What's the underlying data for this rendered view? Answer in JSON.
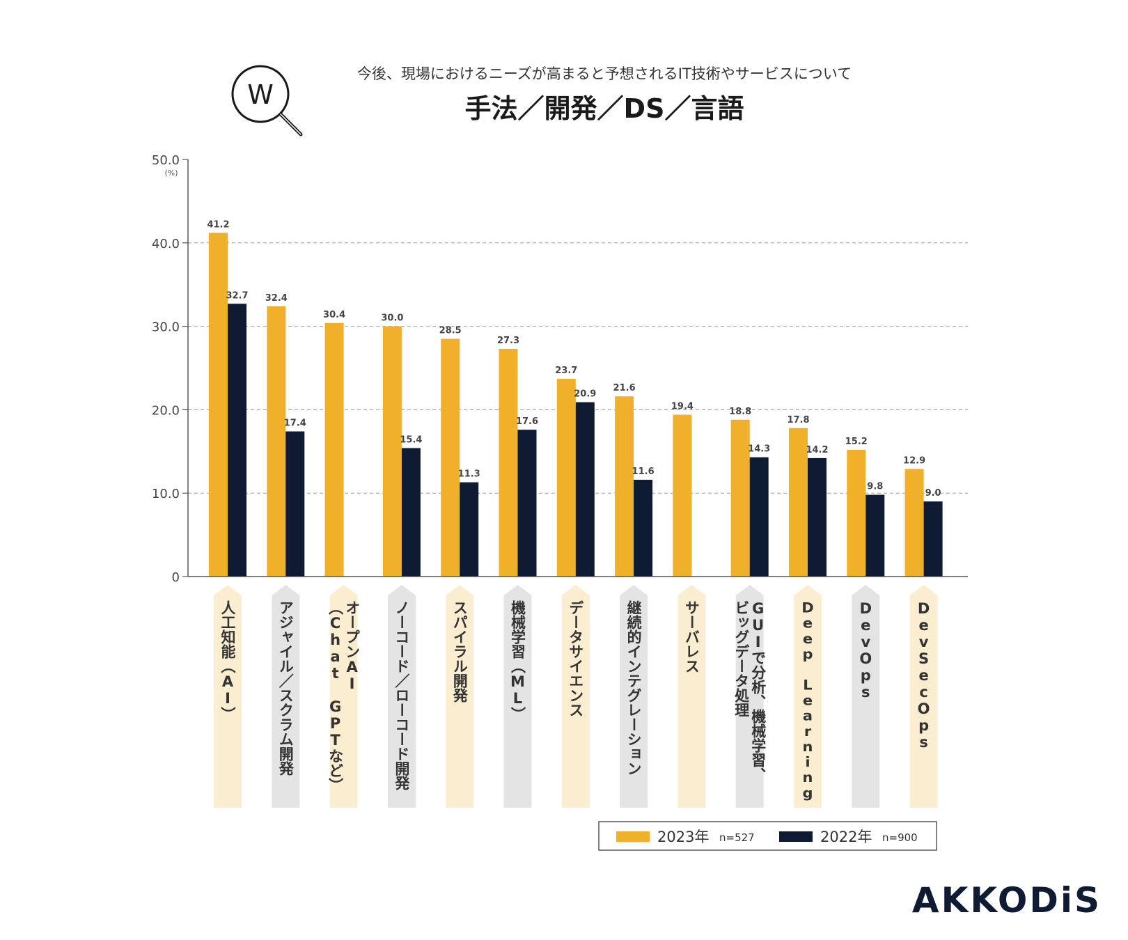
{
  "header": {
    "subtitle": "今後、現場におけるニーズが高まると予想されるIT技術やサービスについて",
    "title": "手法／開発／DS／言語",
    "logo_letter": "W"
  },
  "brand": {
    "text": "AKKODiS",
    "color": "#0f1b33",
    "accent": "#f0b23a"
  },
  "colors": {
    "y2023": "#f0b02a",
    "y2022": "#0f1b33",
    "cat_light": "#fbedd0",
    "cat_gray": "#e4e4e4"
  },
  "chart_data": {
    "type": "bar",
    "unit": "(%)",
    "ylim": [
      0,
      50
    ],
    "yticks": [
      {
        "value": 0,
        "label": "0"
      },
      {
        "value": 10,
        "label": "10.0"
      },
      {
        "value": 20,
        "label": "20.0"
      },
      {
        "value": 30,
        "label": "30.0"
      },
      {
        "value": 40,
        "label": "40.0"
      },
      {
        "value": 50,
        "label": "50.0"
      }
    ],
    "grid": "dashed horizontal",
    "legend_position": "bottom-right",
    "categories": [
      {
        "lines": [
          "人工知能（AI）"
        ],
        "style": "light"
      },
      {
        "lines": [
          "アジャイル／スクラム開発"
        ],
        "style": "gray"
      },
      {
        "lines": [
          "オープンAI",
          "（Chat GPTなど）"
        ],
        "style": "light"
      },
      {
        "lines": [
          "ノーコード／ローコード開発"
        ],
        "style": "gray"
      },
      {
        "lines": [
          "スパイラル開発"
        ],
        "style": "light"
      },
      {
        "lines": [
          "機械学習（ML）"
        ],
        "style": "gray"
      },
      {
        "lines": [
          "データサイエンス"
        ],
        "style": "light"
      },
      {
        "lines": [
          "継続的インテグレーション"
        ],
        "style": "gray"
      },
      {
        "lines": [
          "サーバレス"
        ],
        "style": "light"
      },
      {
        "lines": [
          "GUIで分析、機械学習、",
          "ビッグデータ処理"
        ],
        "style": "gray"
      },
      {
        "lines": [
          "Deep Learning"
        ],
        "style": "light"
      },
      {
        "lines": [
          "DevOps"
        ],
        "style": "gray"
      },
      {
        "lines": [
          "DevSecOps"
        ],
        "style": "light"
      }
    ],
    "series": [
      {
        "name": "2023年",
        "n": "n=527",
        "color": "#f0b02a",
        "values": [
          41.2,
          32.4,
          30.4,
          30.0,
          28.5,
          27.3,
          23.7,
          21.6,
          19.4,
          18.8,
          17.8,
          15.2,
          12.9
        ],
        "labels": [
          "41.2",
          "32.4",
          "30.4",
          "30.0",
          "28.5",
          "27.3",
          "23.7",
          "21.6",
          "19.4",
          "18.8",
          "17.8",
          "15.2",
          "12.9"
        ]
      },
      {
        "name": "2022年",
        "n": "n=900",
        "color": "#0f1b33",
        "values": [
          32.7,
          17.4,
          null,
          15.4,
          11.3,
          17.6,
          20.9,
          11.6,
          null,
          14.3,
          14.2,
          9.8,
          9.0
        ],
        "labels": [
          "32.7",
          "17.4",
          null,
          "15.4",
          "11.3",
          "17.6",
          "20.9",
          "11.6",
          null,
          "14.3",
          "14.2",
          "9.8",
          "9.0"
        ]
      }
    ]
  }
}
